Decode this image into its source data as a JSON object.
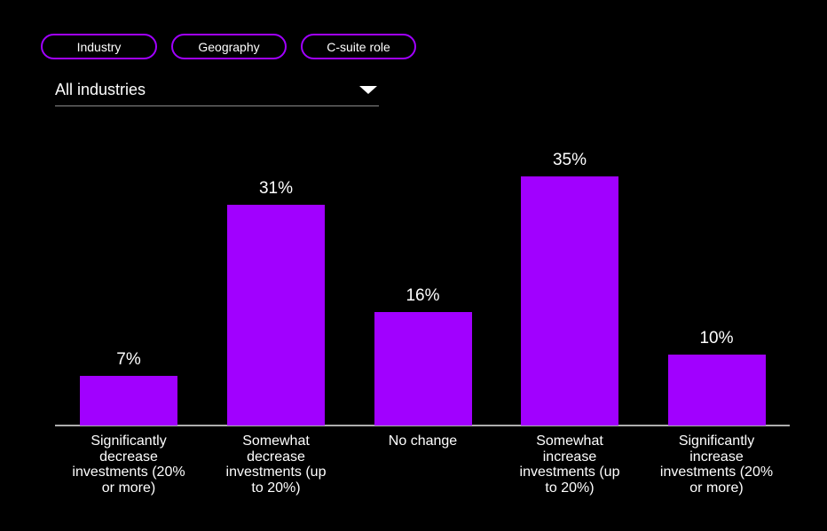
{
  "colors": {
    "background": "#000000",
    "accent_purple": "#A100FF",
    "text": "#FFFFFF",
    "axis_line": "#ADADAD",
    "dropdown_underline": "#8A8A8A"
  },
  "filter_tabs": {
    "items": [
      {
        "label": "Industry"
      },
      {
        "label": "Geography"
      },
      {
        "label": "C-suite role"
      }
    ]
  },
  "dropdown": {
    "selected": "All industries",
    "icon": "chevron-down"
  },
  "chart_data": {
    "type": "bar",
    "title": "",
    "categories": [
      "Significantly decrease investments (20% or more)",
      "Somewhat decrease investments (up to 20%)",
      "No change",
      "Somewhat increase investments (up to 20%)",
      "Significantly increase investments (20% or more)"
    ],
    "values": [
      7,
      31,
      16,
      35,
      10
    ],
    "value_labels": [
      "7%",
      "31%",
      "16%",
      "35%",
      "10%"
    ],
    "unit": "percent",
    "xlabel": "",
    "ylabel": "",
    "ylim": [
      0,
      40
    ],
    "grid": false,
    "legend": null,
    "bar_color": "#A100FF",
    "tick_label_lines": [
      [
        "Significantly",
        "decrease",
        "investments (20%",
        "or more)"
      ],
      [
        "Somewhat",
        "decrease",
        "investments (up",
        "to 20%)"
      ],
      [
        "No change"
      ],
      [
        "Somewhat",
        "increase",
        "investments (up",
        "to 20%)"
      ],
      [
        "Significantly",
        "increase",
        "investments (20%",
        "or more)"
      ]
    ]
  }
}
